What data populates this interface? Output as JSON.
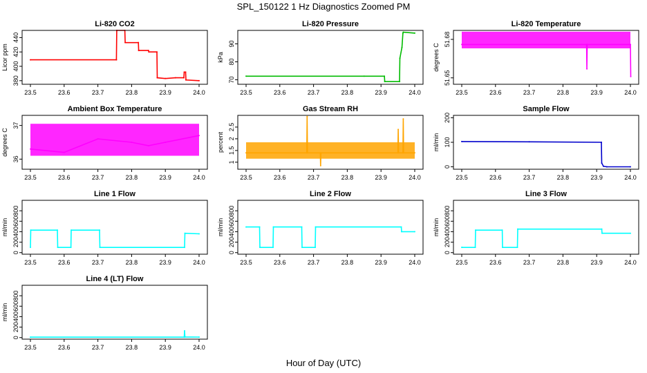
{
  "figure": {
    "title": "SPL_150122  1 Hz Diagnostics Zoomed PM",
    "xlabel": "Hour of Day (UTC)"
  },
  "chart_data": [
    {
      "type": "line",
      "title": "Li-820 CO2",
      "ylabel": "Licor ppm",
      "color": "#ff0000",
      "xlim": [
        23.5,
        24.0
      ],
      "ylim": [
        375,
        450
      ],
      "yticks": [
        380,
        400,
        420,
        440
      ],
      "x": [
        23.5,
        23.755,
        23.756,
        23.78,
        23.781,
        23.82,
        23.821,
        23.85,
        23.851,
        23.875,
        23.876,
        23.9,
        23.93,
        23.955,
        23.956,
        23.96,
        23.961,
        24.0
      ],
      "y": [
        409,
        409,
        450,
        450,
        433,
        433,
        422,
        422,
        420,
        420,
        384,
        383,
        384,
        384,
        392,
        392,
        381,
        380
      ]
    },
    {
      "type": "line",
      "title": "Li-820 Pressure",
      "ylabel": "kPa",
      "color": "#00bb00",
      "xlim": [
        23.5,
        24.0
      ],
      "ylim": [
        67.5,
        97.5
      ],
      "yticks": [
        70,
        80,
        90
      ],
      "x": [
        23.5,
        23.85,
        23.91,
        23.911,
        23.955,
        23.956,
        23.962,
        23.965,
        23.966,
        24.0
      ],
      "y": [
        72,
        72,
        72,
        69,
        69,
        82,
        88,
        96,
        96.5,
        96
      ]
    },
    {
      "type": "line",
      "title": "Li-820 Temperature",
      "ylabel": "degrees C",
      "color": "#ff00ff",
      "xlim": [
        23.5,
        24.0
      ],
      "ylim": [
        51.645,
        51.687
      ],
      "yticks": [
        51.65,
        51.68
      ],
      "x": [
        23.5,
        23.87,
        23.871,
        23.872,
        24.0,
        24.001
      ],
      "y": [
        51.676,
        51.676,
        51.657,
        51.676,
        51.676,
        51.651
      ],
      "band": [
        51.673,
        51.686
      ]
    },
    {
      "type": "line",
      "title": "Ambient Box Temperature",
      "ylabel": "degrees C",
      "color": "#ff00ff",
      "xlim": [
        23.5,
        24.0
      ],
      "ylim": [
        35.7,
        37.3
      ],
      "yticks": [
        36.0,
        37.0
      ],
      "x": [
        23.5,
        23.6,
        23.7,
        23.8,
        23.85,
        23.9,
        24.0
      ],
      "y": [
        36.3,
        36.2,
        36.6,
        36.5,
        36.4,
        36.5,
        36.7
      ],
      "band": [
        36.1,
        37.05
      ]
    },
    {
      "type": "line",
      "title": "Gas Stream RH",
      "ylabel": "percent",
      "color": "#ffa500",
      "xlim": [
        23.5,
        24.0
      ],
      "ylim": [
        0.7,
        3.0
      ],
      "yticks": [
        1.0,
        1.5,
        2.0,
        2.5
      ],
      "x": [
        23.5,
        23.68,
        23.681,
        23.682,
        23.72,
        23.721,
        23.722,
        23.95,
        23.951,
        23.952,
        23.965,
        23.966,
        23.967,
        24.0
      ],
      "y": [
        1.4,
        1.4,
        2.95,
        1.4,
        1.4,
        0.85,
        1.4,
        1.4,
        2.4,
        1.4,
        1.4,
        2.85,
        1.4,
        1.4
      ],
      "band": [
        1.15,
        1.85
      ]
    },
    {
      "type": "line",
      "title": "Sample Flow",
      "ylabel": "ml/min",
      "color": "#0000cc",
      "xlim": [
        23.5,
        24.0
      ],
      "ylim": [
        -10,
        210
      ],
      "yticks": [
        0,
        100,
        200
      ],
      "x": [
        23.5,
        23.7,
        23.914,
        23.915,
        23.92,
        23.93,
        24.0
      ],
      "y": [
        103,
        102,
        100,
        15,
        2,
        0,
        0
      ]
    },
    {
      "type": "line",
      "title": "Line 1 Flow",
      "ylabel": "ml/min",
      "color": "#00ffff",
      "xlim": [
        23.5,
        24.0
      ],
      "ylim": [
        -30,
        1000
      ],
      "yticks": [
        0,
        200,
        400,
        600,
        800
      ],
      "x": [
        23.5,
        23.501,
        23.58,
        23.581,
        23.62,
        23.621,
        23.705,
        23.706,
        23.957,
        23.958,
        24.0
      ],
      "y": [
        100,
        430,
        430,
        100,
        100,
        430,
        430,
        100,
        100,
        370,
        360
      ]
    },
    {
      "type": "line",
      "title": "Line 2 Flow",
      "ylabel": "ml/min",
      "color": "#00ffff",
      "xlim": [
        23.5,
        24.0
      ],
      "ylim": [
        -30,
        1000
      ],
      "yticks": [
        0,
        200,
        400,
        600,
        800
      ],
      "x": [
        23.5,
        23.54,
        23.541,
        23.58,
        23.581,
        23.665,
        23.666,
        23.705,
        23.706,
        23.96,
        23.961,
        24.0
      ],
      "y": [
        490,
        490,
        100,
        100,
        490,
        490,
        100,
        100,
        490,
        490,
        400,
        400
      ]
    },
    {
      "type": "line",
      "title": "Line 3 Flow",
      "ylabel": "ml/min",
      "color": "#00ffff",
      "xlim": [
        23.5,
        24.0
      ],
      "ylim": [
        -30,
        1000
      ],
      "yticks": [
        0,
        200,
        400,
        600,
        800
      ],
      "x": [
        23.5,
        23.501,
        23.54,
        23.541,
        23.62,
        23.621,
        23.665,
        23.666,
        23.915,
        23.916,
        24.0
      ],
      "y": [
        100,
        100,
        100,
        430,
        430,
        100,
        100,
        450,
        450,
        370,
        370
      ]
    },
    {
      "type": "line",
      "title": "Line 4 (LT) Flow",
      "ylabel": "ml/min",
      "color": "#00ffff",
      "xlim": [
        23.5,
        24.0
      ],
      "ylim": [
        -30,
        1000
      ],
      "yticks": [
        0,
        200,
        400,
        600,
        800
      ],
      "x": [
        23.5,
        23.956,
        23.957,
        23.958,
        24.0
      ],
      "y": [
        8,
        8,
        130,
        12,
        10
      ]
    }
  ],
  "xticks": [
    23.5,
    23.6,
    23.7,
    23.8,
    23.9,
    24.0
  ],
  "xtick_labels": [
    "23.5",
    "23.6",
    "23.7",
    "23.8",
    "23.9",
    "24.0"
  ]
}
